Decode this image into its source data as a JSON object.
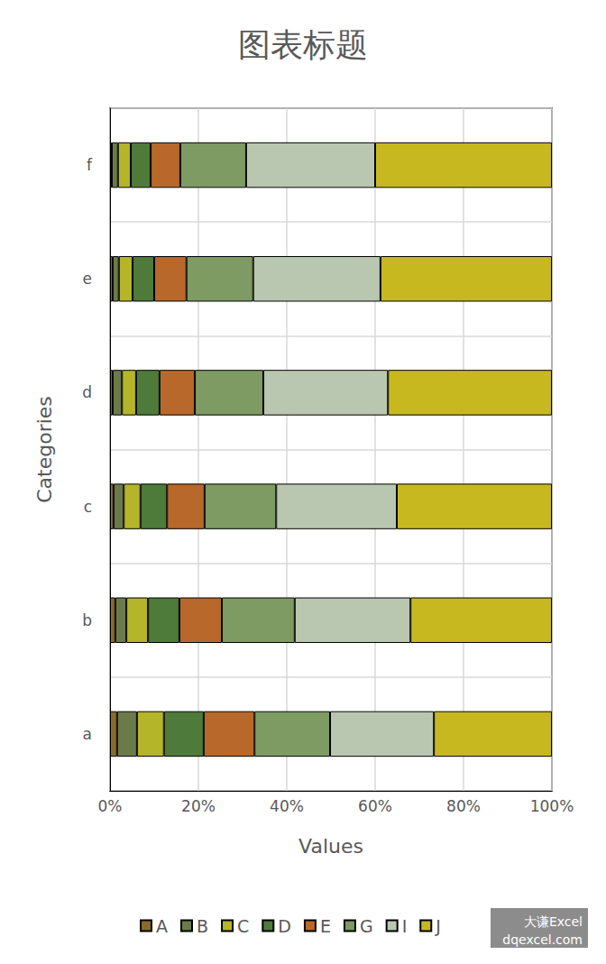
{
  "chart_data": {
    "type": "bar",
    "title": "图表标题",
    "x_label": "Values",
    "y_label": "Categories",
    "orientation": "horizontal",
    "stacked": true,
    "grid": true,
    "legend": "bottom",
    "categories": [
      "a",
      "b",
      "c",
      "d",
      "e",
      "f"
    ],
    "series": [
      {
        "name": "A",
        "color": "#8a6a2a",
        "values": [
          1.6,
          1.2,
          0.8,
          0.6,
          0.6,
          0.4
        ]
      },
      {
        "name": "B",
        "color": "#6b7a4a",
        "values": [
          4.5,
          2.5,
          2.3,
          2.1,
          1.4,
          1.4
        ]
      },
      {
        "name": "C",
        "color": "#b5b52a",
        "values": [
          6.1,
          4.9,
          3.8,
          3.2,
          3.1,
          2.9
        ]
      },
      {
        "name": "D",
        "color": "#4e7a3a",
        "values": [
          9.0,
          7.1,
          6.0,
          5.3,
          4.9,
          4.5
        ]
      },
      {
        "name": "E",
        "color": "#b8682a",
        "values": [
          11.5,
          9.6,
          8.5,
          8.0,
          7.3,
          6.7
        ]
      },
      {
        "name": "G",
        "color": "#7d9b62",
        "values": [
          17.1,
          16.5,
          16.2,
          15.5,
          15.1,
          14.9
        ]
      },
      {
        "name": "I",
        "color": "#b9c7b0",
        "values": [
          23.5,
          26.2,
          27.3,
          28.2,
          28.8,
          29.2
        ]
      },
      {
        "name": "J",
        "color": "#c8b820",
        "values": [
          26.7,
          32.0,
          35.1,
          37.1,
          38.8,
          40.0
        ]
      }
    ],
    "xlim": [
      0,
      100
    ],
    "xticks": [
      {
        "value": 0,
        "label": "0%"
      },
      {
        "value": 20,
        "label": "20%"
      },
      {
        "value": 40,
        "label": "40%"
      },
      {
        "value": 60,
        "label": "60%"
      },
      {
        "value": 80,
        "label": "80%"
      },
      {
        "value": 100,
        "label": "100%"
      }
    ],
    "annotations": [
      "大谦Excel",
      "dqexcel.com"
    ]
  }
}
